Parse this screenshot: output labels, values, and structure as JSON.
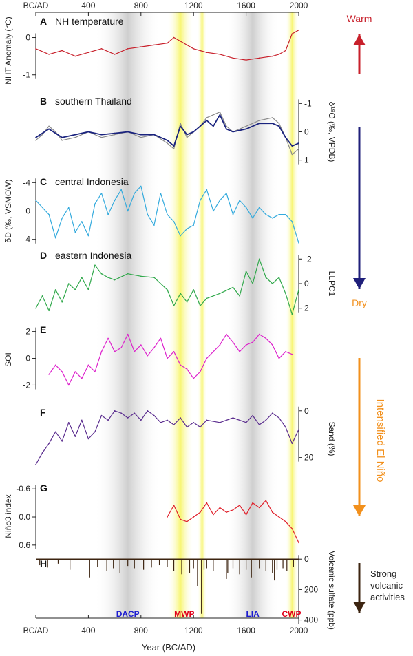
{
  "figure": {
    "x_axis": {
      "title": "Year (BC/AD)",
      "range": [
        0,
        2000
      ],
      "ticks": [
        0,
        400,
        800,
        1200,
        1600,
        2000
      ],
      "tick_labels": [
        "BC/AD",
        "400",
        "800",
        "1200",
        "1600",
        "2000"
      ]
    },
    "shaded_periods": [
      {
        "label": "DACP",
        "start": 450,
        "end": 950,
        "fill": "gray",
        "label_color": "#1c1cd0"
      },
      {
        "label": "MWP",
        "start": 1000,
        "end": 1200,
        "fill": "yellow",
        "label_color": "#e0001a"
      },
      {
        "label": "MWP",
        "start": 1230,
        "end": 1300,
        "fill": "yellow",
        "label_color": "#e0001a"
      },
      {
        "label": "LIA",
        "start": 1450,
        "end": 1850,
        "fill": "gray",
        "label_color": "#1c1cd0"
      },
      {
        "label": "CWP",
        "start": 1900,
        "end": 2000,
        "fill": "yellow",
        "label_color": "#e0001a"
      }
    ],
    "period_labels": [
      {
        "text": "DACP",
        "year": 700,
        "color": "#1c1cd0"
      },
      {
        "text": "MWP",
        "year": 1130,
        "color": "#e0001a"
      },
      {
        "text": "LIA",
        "year": 1650,
        "color": "#1c1cd0"
      },
      {
        "text": "CWP",
        "year": 1945,
        "color": "#e0001a"
      }
    ],
    "side_arrows": [
      {
        "top_label": "Warm",
        "top_color": "#c8202b",
        "arrow_color": "#c8202b",
        "direction": "up",
        "bottom_label": ""
      },
      {
        "top_label": "",
        "arrow_color": "#1f1f7a",
        "direction": "down",
        "bottom_label": "Dry",
        "bottom_color": "#f2901c"
      },
      {
        "label": "Intensified El Niño",
        "label_color": "#f2901c",
        "arrow_color": "#f2901c",
        "direction": "down"
      },
      {
        "label": "Strong\nvolcanic\nactivities",
        "label_color": "#222222",
        "arrow_color": "#3c2410",
        "direction": "down"
      }
    ]
  },
  "chart_data": [
    {
      "panel": "A",
      "type": "line",
      "title": "NH temperature",
      "ylabel": "NHT Anomaly (°C)",
      "y_side": "left",
      "ylim": [
        -1.3,
        0.6
      ],
      "inverted": false,
      "yticks": [
        0,
        -1
      ],
      "ytick_labels": [
        "0",
        "-1"
      ],
      "color": "#c8202b",
      "series": [
        {
          "x": [
            0,
            100,
            200,
            300,
            400,
            500,
            600,
            700,
            800,
            900,
            1000,
            1050,
            1100,
            1150,
            1200,
            1250,
            1300,
            1400,
            1500,
            1600,
            1700,
            1800,
            1850,
            1900,
            1950,
            2000
          ],
          "y": [
            -0.3,
            -0.45,
            -0.35,
            -0.5,
            -0.4,
            -0.3,
            -0.45,
            -0.3,
            -0.25,
            -0.2,
            -0.15,
            0.0,
            -0.1,
            -0.2,
            -0.3,
            -0.35,
            -0.4,
            -0.45,
            -0.55,
            -0.6,
            -0.55,
            -0.5,
            -0.45,
            -0.35,
            0.1,
            0.2
          ]
        }
      ]
    },
    {
      "panel": "B",
      "type": "line",
      "title": "southern Thailand",
      "ylabel": "δ¹⁸O (‰, VPDB)",
      "y_side": "right",
      "ylim": [
        -1.3,
        1.3
      ],
      "inverted": true,
      "yticks": [
        -1,
        0,
        1
      ],
      "ytick_labels": [
        "-1",
        "0",
        "1"
      ],
      "series": [
        {
          "color": "#8a8a8a",
          "x": [
            0,
            50,
            100,
            150,
            200,
            300,
            400,
            500,
            600,
            700,
            800,
            900,
            1000,
            1050,
            1100,
            1150,
            1200,
            1250,
            1300,
            1400,
            1450,
            1500,
            1600,
            1700,
            1800,
            1850,
            1900,
            1950,
            2000
          ],
          "y": [
            0.3,
            0.1,
            -0.2,
            0.0,
            0.3,
            0.2,
            0.0,
            0.2,
            0.1,
            0.0,
            0.2,
            0.1,
            0.4,
            0.6,
            -0.3,
            0.2,
            0.0,
            -0.2,
            -0.5,
            -0.7,
            -0.2,
            0.0,
            -0.2,
            -0.4,
            -0.5,
            -0.3,
            0.2,
            0.8,
            0.6
          ]
        },
        {
          "color": "#1a237e",
          "x": [
            0,
            100,
            200,
            300,
            400,
            500,
            600,
            700,
            800,
            900,
            1000,
            1050,
            1100,
            1150,
            1200,
            1250,
            1300,
            1350,
            1400,
            1450,
            1500,
            1600,
            1700,
            1800,
            1850,
            1900,
            1950,
            2000
          ],
          "y": [
            0.2,
            -0.1,
            0.2,
            0.1,
            0.0,
            0.1,
            0.05,
            0.0,
            0.1,
            0.1,
            0.3,
            0.5,
            -0.2,
            0.1,
            0.0,
            -0.2,
            -0.4,
            -0.2,
            -0.6,
            -0.1,
            0.0,
            -0.1,
            -0.3,
            -0.3,
            -0.2,
            0.2,
            0.5,
            0.4
          ]
        }
      ]
    },
    {
      "panel": "C",
      "type": "line",
      "title": "central Indonesia",
      "ylabel": "δD (‰, VSMOW)",
      "y_side": "left",
      "ylim": [
        -5,
        5
      ],
      "inverted": true,
      "yticks": [
        -4,
        0,
        4
      ],
      "ytick_labels": [
        "-4",
        "0",
        "4"
      ],
      "color": "#33aadd",
      "series": [
        {
          "x": [
            0,
            100,
            150,
            200,
            250,
            300,
            350,
            400,
            450,
            500,
            550,
            600,
            650,
            700,
            750,
            800,
            850,
            900,
            950,
            1000,
            1050,
            1100,
            1150,
            1200,
            1250,
            1300,
            1350,
            1400,
            1450,
            1500,
            1550,
            1600,
            1650,
            1700,
            1750,
            1800,
            1850,
            1900,
            1950,
            2000
          ],
          "y": [
            -1.5,
            0.5,
            3.8,
            1.0,
            -0.5,
            3.0,
            1.5,
            3.5,
            -1.0,
            -2.5,
            0.5,
            -1.5,
            -3.0,
            0.0,
            -2.5,
            -3.5,
            0.5,
            2.0,
            -2.5,
            0.5,
            1.5,
            3.5,
            2.5,
            2.0,
            -1.5,
            -3.0,
            0.0,
            -1.5,
            -2.5,
            0.5,
            -1.5,
            -0.5,
            1.0,
            -0.5,
            0.5,
            1.0,
            0.5,
            0.5,
            1.5,
            4.5
          ]
        }
      ]
    },
    {
      "panel": "D",
      "type": "line",
      "title": "eastern Indonesia",
      "ylabel": "LLPC1",
      "y_side": "right",
      "ylim": [
        -2.8,
        2.8
      ],
      "inverted": true,
      "yticks": [
        -2,
        0,
        2
      ],
      "ytick_labels": [
        "-2",
        "0",
        "2"
      ],
      "color": "#2fa84a",
      "series": [
        {
          "x": [
            0,
            50,
            100,
            150,
            200,
            250,
            300,
            350,
            400,
            450,
            500,
            550,
            600,
            700,
            800,
            900,
            1000,
            1050,
            1100,
            1150,
            1200,
            1250,
            1300,
            1400,
            1500,
            1550,
            1600,
            1650,
            1700,
            1750,
            1800,
            1850,
            1900,
            1950,
            2000
          ],
          "y": [
            2.0,
            1.0,
            2.2,
            0.5,
            1.5,
            0.0,
            0.5,
            -0.5,
            0.5,
            -1.5,
            -0.8,
            -0.5,
            -0.3,
            -0.8,
            -0.6,
            -0.5,
            0.5,
            1.8,
            0.8,
            1.5,
            0.5,
            1.8,
            1.2,
            0.8,
            0.3,
            1.0,
            -1.0,
            0.0,
            -2.0,
            -0.5,
            0.0,
            -0.5,
            0.8,
            2.5,
            0.5
          ]
        }
      ]
    },
    {
      "panel": "E",
      "type": "line",
      "title": "",
      "ylabel": "SOI",
      "y_side": "left",
      "ylim": [
        -2.8,
        2.6
      ],
      "inverted": false,
      "yticks": [
        2,
        0,
        -2
      ],
      "ytick_labels": [
        "2",
        "0",
        "-2"
      ],
      "color": "#dd22cc",
      "series": [
        {
          "x": [
            100,
            150,
            200,
            250,
            300,
            350,
            400,
            450,
            500,
            550,
            600,
            650,
            700,
            750,
            800,
            850,
            900,
            950,
            1000,
            1050,
            1100,
            1150,
            1200,
            1250,
            1300,
            1350,
            1400,
            1450,
            1500,
            1550,
            1600,
            1650,
            1700,
            1750,
            1800,
            1850,
            1900,
            1950
          ],
          "y": [
            -1.2,
            -0.5,
            -1.0,
            -2.0,
            -1.0,
            -1.5,
            -0.5,
            -1.0,
            0.5,
            1.5,
            0.5,
            0.8,
            1.8,
            0.5,
            1.0,
            0.2,
            0.8,
            1.5,
            0.0,
            0.5,
            -0.5,
            -0.8,
            -1.5,
            -1.0,
            0.0,
            0.5,
            1.0,
            1.8,
            1.2,
            0.5,
            1.0,
            1.2,
            1.8,
            1.5,
            1.0,
            0.0,
            0.5,
            0.3
          ]
        }
      ]
    },
    {
      "panel": "F",
      "type": "line",
      "title": "",
      "ylabel": "Sand (%)",
      "y_side": "right",
      "ylim": [
        -2,
        26
      ],
      "inverted": true,
      "yticks": [
        0,
        20
      ],
      "ytick_labels": [
        "0",
        "20"
      ],
      "color": "#5b2d8f",
      "series": [
        {
          "x": [
            0,
            50,
            100,
            150,
            200,
            250,
            300,
            350,
            400,
            450,
            500,
            550,
            600,
            650,
            700,
            750,
            800,
            850,
            900,
            950,
            1000,
            1050,
            1100,
            1150,
            1200,
            1250,
            1300,
            1400,
            1500,
            1600,
            1650,
            1700,
            1750,
            1800,
            1850,
            1900,
            1950,
            2000
          ],
          "y": [
            23,
            18,
            14,
            9,
            13,
            5,
            11,
            4,
            12,
            9,
            2,
            4,
            0,
            1,
            3,
            1,
            4,
            0,
            2,
            5,
            4,
            6,
            3,
            7,
            5,
            7,
            4,
            5,
            3,
            5,
            2,
            6,
            4,
            1,
            3,
            7,
            14,
            8
          ]
        }
      ]
    },
    {
      "panel": "G",
      "type": "line",
      "title": "",
      "ylabel": "Niño3 index",
      "y_side": "left",
      "ylim": [
        -0.75,
        0.72
      ],
      "inverted": true,
      "yticks": [
        -0.6,
        0.0,
        0.6
      ],
      "ytick_labels": [
        "-0.6",
        "0.0",
        "0.6"
      ],
      "color": "#e0202b",
      "series": [
        {
          "x": [
            1000,
            1050,
            1100,
            1150,
            1200,
            1250,
            1300,
            1350,
            1400,
            1450,
            1500,
            1550,
            1600,
            1650,
            1700,
            1750,
            1800,
            1850,
            1900,
            1950,
            2000
          ],
          "y": [
            0.0,
            -0.25,
            0.05,
            0.1,
            0.0,
            -0.1,
            -0.3,
            -0.05,
            -0.2,
            -0.1,
            -0.15,
            -0.25,
            -0.05,
            -0.3,
            -0.2,
            -0.35,
            -0.1,
            0.0,
            0.1,
            0.25,
            0.55
          ]
        }
      ]
    },
    {
      "panel": "H",
      "type": "bar",
      "title": "",
      "ylabel": "Volcanic sulfate (ppb)",
      "y_side": "right",
      "ylim": [
        -10,
        420
      ],
      "inverted": true,
      "yticks": [
        0,
        200,
        400
      ],
      "ytick_labels": [
        "0",
        "200",
        "400"
      ],
      "color": "#3c2410",
      "series": [
        {
          "x": [
            30,
            90,
            170,
            260,
            410,
            470,
            540,
            590,
            640,
            700,
            750,
            820,
            880,
            940,
            1000,
            1050,
            1110,
            1170,
            1200,
            1230,
            1260,
            1280,
            1300,
            1350,
            1450,
            1460,
            1500,
            1550,
            1600,
            1640,
            1700,
            1750,
            1800,
            1815,
            1835,
            1880,
            1910,
            1960
          ],
          "y": [
            40,
            55,
            30,
            70,
            120,
            50,
            80,
            60,
            90,
            45,
            60,
            70,
            55,
            40,
            50,
            80,
            100,
            90,
            60,
            180,
            360,
            70,
            60,
            80,
            130,
            90,
            60,
            100,
            70,
            120,
            60,
            80,
            90,
            140,
            70,
            60,
            80,
            50
          ]
        }
      ]
    }
  ]
}
